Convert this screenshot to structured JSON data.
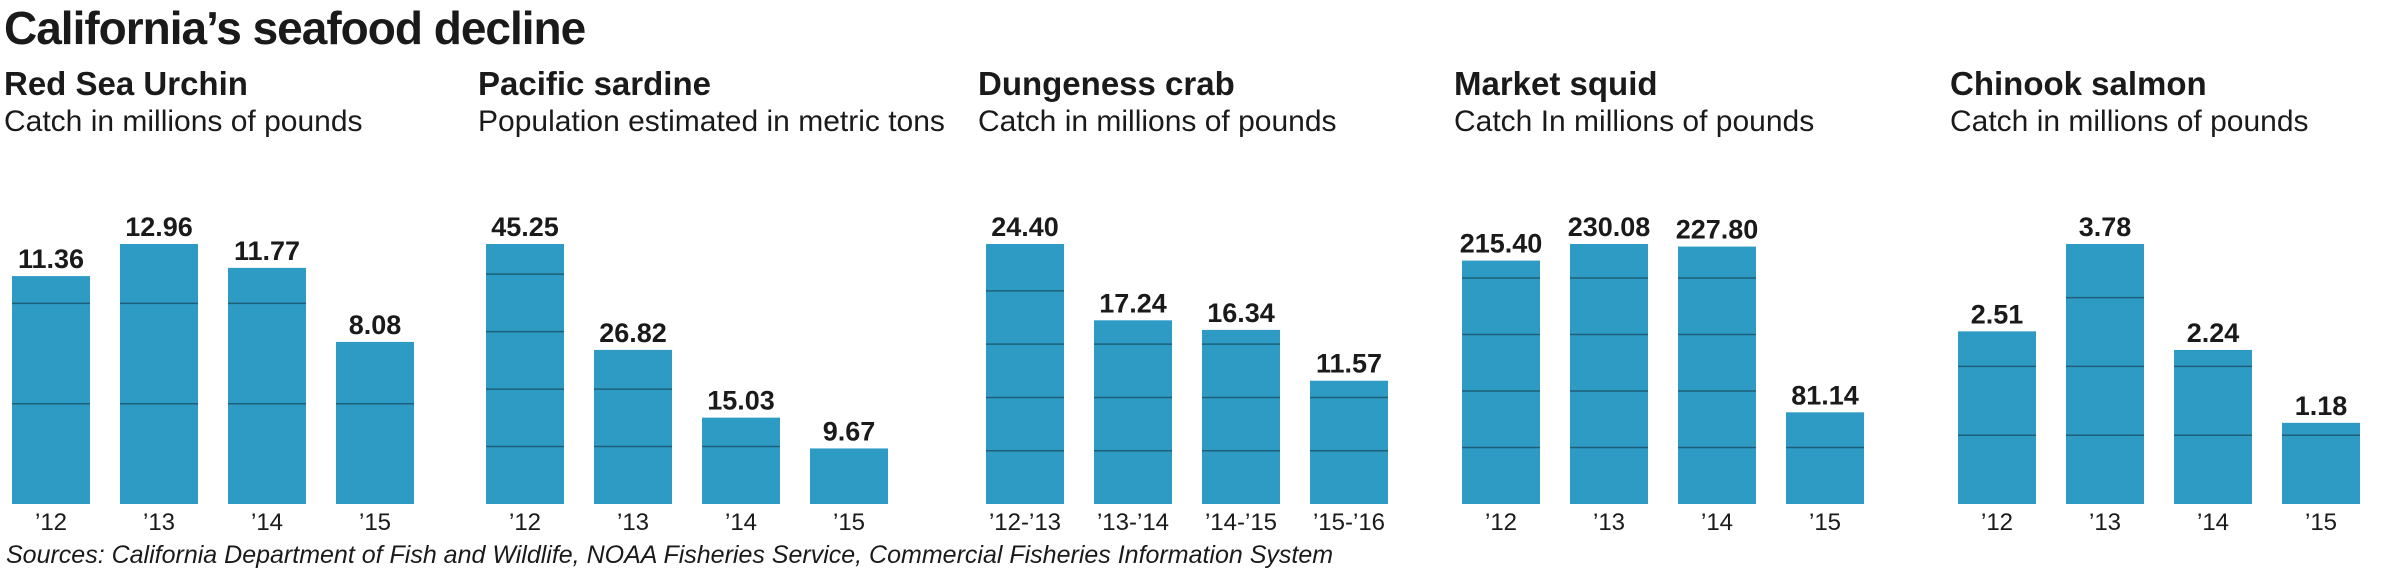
{
  "title": "California’s seafood decline",
  "source": "Sources: California Department of Fish and Wildlife, NOAA Fisheries Service, Commercial Fisheries Information System",
  "bar_color": "#2e9bc4",
  "gridline_color": "#1d5f78",
  "chart_data": [
    {
      "type": "bar",
      "title": "Red Sea Urchin",
      "subtitle": "Catch in millions of pounds",
      "categories": [
        "’12",
        "’13",
        "’14",
        "’15"
      ],
      "values": [
        11.36,
        12.96,
        11.77,
        8.08
      ],
      "value_labels": [
        "11.36",
        "12.96",
        "11.77",
        "8.08"
      ],
      "grid": true,
      "gridlines": [
        5,
        10
      ]
    },
    {
      "type": "bar",
      "title": "Pacific sardine",
      "subtitle": "Population estimated in metric tons",
      "categories": [
        "’12",
        "’13",
        "’14",
        "’15"
      ],
      "values": [
        45.25,
        26.82,
        15.03,
        9.67
      ],
      "value_labels": [
        "45.25",
        "26.82",
        "15.03",
        "9.67"
      ],
      "grid": true,
      "gridlines": [
        10,
        20,
        30,
        40
      ]
    },
    {
      "type": "bar",
      "title": "Dungeness crab",
      "subtitle": "Catch in millions of pounds",
      "categories": [
        "’12-’13",
        "’13-’14",
        "’14-’15",
        "’15-’16"
      ],
      "values": [
        24.4,
        17.24,
        16.34,
        11.57
      ],
      "value_labels": [
        "24.40",
        "17.24",
        "16.34",
        "11.57"
      ],
      "grid": true,
      "gridlines": [
        5,
        10,
        15,
        20
      ]
    },
    {
      "type": "bar",
      "title": "Market squid",
      "subtitle": "Catch In millions of pounds",
      "categories": [
        "’12",
        "’13",
        "’14",
        "’15"
      ],
      "values": [
        215.4,
        230.08,
        227.8,
        81.14
      ],
      "value_labels": [
        "215.40",
        "230.08",
        "227.80",
        "81.14"
      ],
      "grid": true,
      "gridlines": [
        50,
        100,
        150,
        200
      ]
    },
    {
      "type": "bar",
      "title": "Chinook salmon",
      "subtitle": "Catch in millions of pounds",
      "categories": [
        "’12",
        "’13",
        "’14",
        "’15"
      ],
      "values": [
        2.51,
        3.78,
        2.24,
        1.18
      ],
      "value_labels": [
        "2.51",
        "3.78",
        "2.24",
        "1.18"
      ],
      "grid": true,
      "gridlines": [
        1,
        2,
        3
      ]
    }
  ]
}
